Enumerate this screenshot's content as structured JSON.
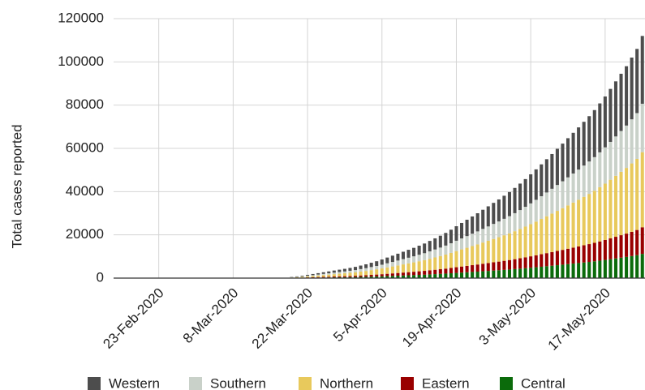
{
  "chart_data": {
    "type": "stacked_bar",
    "y_label": "Total cases reported",
    "categories": [
      null,
      null,
      null,
      null,
      null,
      null,
      null,
      null,
      "23-Feb-2020",
      null,
      null,
      null,
      null,
      null,
      null,
      null,
      null,
      null,
      null,
      null,
      null,
      null,
      "8-Mar-2020",
      null,
      null,
      null,
      null,
      null,
      null,
      null,
      null,
      null,
      null,
      null,
      null,
      null,
      "22-Mar-2020",
      null,
      null,
      null,
      null,
      null,
      null,
      null,
      null,
      null,
      null,
      null,
      null,
      null,
      "5-Apr-2020",
      null,
      null,
      null,
      null,
      null,
      null,
      null,
      null,
      null,
      null,
      null,
      null,
      null,
      "19-Apr-2020",
      null,
      null,
      null,
      null,
      null,
      null,
      null,
      null,
      null,
      null,
      null,
      null,
      null,
      "3-May-2020",
      null,
      null,
      null,
      null,
      null,
      null,
      null,
      null,
      null,
      null,
      null,
      null,
      null,
      "17-May-2020",
      null,
      null,
      null,
      null,
      null,
      null,
      null
    ],
    "series": [
      {
        "name": "Western",
        "color": "#4d4d4d",
        "values": [
          0,
          0,
          0,
          0,
          0,
          0,
          0,
          0,
          0,
          0,
          0,
          0,
          0,
          0,
          0,
          0,
          0,
          0,
          0,
          0,
          0,
          0,
          0,
          0,
          0,
          0,
          0,
          0,
          0,
          0,
          0,
          0,
          0,
          140,
          220,
          310,
          420,
          530,
          640,
          760,
          870,
          980,
          1090,
          1200,
          1320,
          1460,
          1620,
          1790,
          1990,
          2180,
          2410,
          2660,
          2910,
          3160,
          3420,
          3670,
          3920,
          4200,
          4480,
          4820,
          5150,
          5490,
          5850,
          6270,
          6720,
          7140,
          7560,
          7980,
          8400,
          8850,
          9300,
          9740,
          10190,
          10670,
          11140,
          11680,
          12240,
          12820,
          13440,
          14080,
          14730,
          15400,
          16070,
          16740,
          17420,
          18120,
          18820,
          19520,
          20240,
          20970,
          21760,
          22620,
          23520,
          24500,
          25480,
          26460,
          27440,
          28560,
          29680,
          31360
        ]
      },
      {
        "name": "Southern",
        "color": "#c9d1c9",
        "values": [
          0,
          0,
          0,
          0,
          0,
          0,
          0,
          0,
          0,
          0,
          0,
          0,
          0,
          0,
          0,
          0,
          0,
          0,
          0,
          0,
          0,
          0,
          0,
          0,
          0,
          0,
          0,
          0,
          0,
          0,
          0,
          0,
          0,
          100,
          160,
          220,
          300,
          380,
          460,
          540,
          620,
          700,
          780,
          860,
          940,
          1040,
          1160,
          1280,
          1420,
          1560,
          1720,
          1900,
          2080,
          2260,
          2440,
          2620,
          2800,
          3000,
          3200,
          3440,
          3680,
          3920,
          4180,
          4480,
          4800,
          5100,
          5400,
          5700,
          6000,
          6320,
          6640,
          6960,
          7280,
          7620,
          7960,
          8340,
          8740,
          9160,
          9600,
          10060,
          10520,
          11000,
          11480,
          11960,
          12440,
          12940,
          13440,
          13940,
          14460,
          14980,
          15540,
          16160,
          16800,
          17500,
          18200,
          18900,
          19600,
          20400,
          21200,
          22400
        ]
      },
      {
        "name": "Northern",
        "color": "#e8c95c",
        "values": [
          0,
          0,
          0,
          0,
          0,
          0,
          0,
          0,
          0,
          0,
          0,
          0,
          0,
          0,
          0,
          0,
          0,
          0,
          0,
          0,
          0,
          0,
          0,
          0,
          0,
          0,
          0,
          0,
          0,
          0,
          0,
          0,
          0,
          160,
          250,
          340,
          470,
          590,
          710,
          840,
          960,
          1090,
          1210,
          1330,
          1460,
          1610,
          1800,
          1980,
          2200,
          2420,
          2670,
          2950,
          3220,
          3500,
          3780,
          4060,
          4340,
          4650,
          4960,
          5330,
          5700,
          6080,
          6480,
          6940,
          7440,
          7910,
          8370,
          8840,
          9300,
          9800,
          10290,
          10790,
          11280,
          11810,
          12340,
          12930,
          13550,
          14200,
          14880,
          15590,
          16310,
          17050,
          17790,
          18540,
          19280,
          20060,
          20830,
          21610,
          22410,
          23220,
          24090,
          25050,
          26040,
          27130,
          28210,
          29300,
          30380,
          31620,
          32860,
          34720
        ]
      },
      {
        "name": "Eastern",
        "color": "#990000",
        "values": [
          0,
          0,
          0,
          0,
          0,
          0,
          0,
          0,
          0,
          0,
          0,
          0,
          0,
          0,
          0,
          0,
          0,
          0,
          0,
          0,
          0,
          0,
          0,
          0,
          0,
          0,
          0,
          0,
          0,
          0,
          0,
          0,
          0,
          60,
          90,
          120,
          170,
          210,
          250,
          300,
          340,
          390,
          430,
          470,
          520,
          570,
          640,
          700,
          780,
          860,
          950,
          1050,
          1140,
          1240,
          1340,
          1440,
          1540,
          1650,
          1760,
          1890,
          2020,
          2160,
          2300,
          2460,
          2640,
          2810,
          2970,
          3140,
          3300,
          3480,
          3650,
          3830,
          4000,
          4190,
          4380,
          4590,
          4810,
          5040,
          5280,
          5530,
          5790,
          6050,
          6310,
          6580,
          6840,
          7120,
          7390,
          7670,
          7950,
          8240,
          8550,
          8890,
          9240,
          9630,
          10010,
          10400,
          10780,
          11220,
          11660,
          12320
        ]
      },
      {
        "name": "Central",
        "color": "#0b6b0b",
        "values": [
          0,
          0,
          0,
          0,
          0,
          0,
          0,
          0,
          0,
          0,
          0,
          0,
          0,
          0,
          0,
          0,
          0,
          0,
          0,
          0,
          0,
          0,
          0,
          0,
          0,
          0,
          0,
          0,
          0,
          0,
          0,
          0,
          0,
          50,
          80,
          110,
          150,
          190,
          230,
          270,
          310,
          350,
          390,
          430,
          470,
          520,
          580,
          640,
          710,
          780,
          860,
          950,
          1040,
          1130,
          1220,
          1310,
          1400,
          1500,
          1600,
          1720,
          1840,
          1960,
          2090,
          2240,
          2400,
          2550,
          2700,
          2850,
          3000,
          3160,
          3320,
          3480,
          3640,
          3810,
          3980,
          4170,
          4370,
          4580,
          4800,
          5030,
          5260,
          5500,
          5740,
          5980,
          6220,
          6470,
          6720,
          6970,
          7230,
          7490,
          7770,
          8080,
          8400,
          8750,
          9100,
          9450,
          9800,
          10200,
          10600,
          11200
        ]
      }
    ],
    "ylim": [
      0,
      120000
    ],
    "yticks": [
      0,
      20000,
      40000,
      60000,
      80000,
      100000,
      120000
    ],
    "grid": true,
    "legend": "bottom"
  }
}
